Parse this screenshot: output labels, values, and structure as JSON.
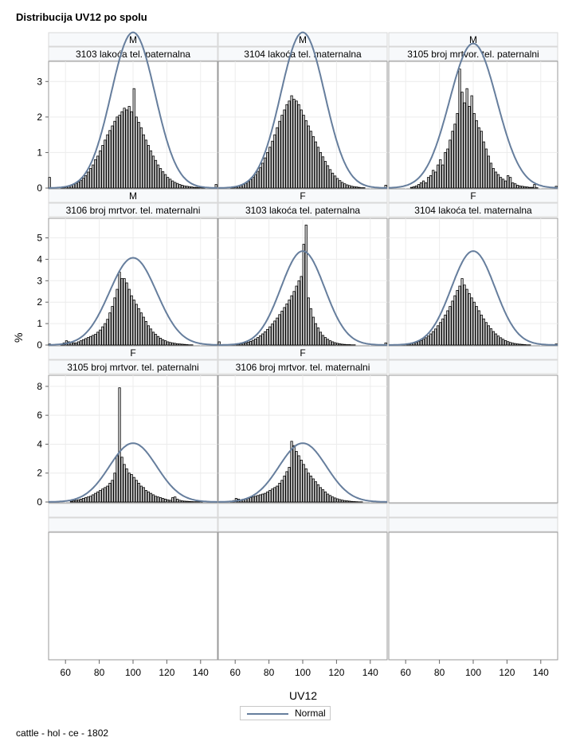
{
  "title": "Distribucija UV12 po spolu",
  "footnote": "cattle - hol - ce - 1802",
  "legend": {
    "label": "Normal",
    "color": "#667e9d"
  },
  "chart_data": {
    "type": "histogram-panel",
    "xlabel": "UV12",
    "ylabel": "%",
    "xlim": [
      50,
      150
    ],
    "xticks": [
      60,
      80,
      100,
      120,
      140
    ],
    "grid": true,
    "legend_position": "bottom-center",
    "bar_color": "#000000",
    "curve_color": "#667e9d",
    "rows": [
      {
        "ylim": [
          0,
          3.5
        ],
        "yticks": [
          0,
          1,
          2,
          3
        ]
      },
      {
        "ylim": [
          0,
          5.8
        ],
        "yticks": [
          0,
          1,
          2,
          3,
          4,
          5
        ]
      },
      {
        "ylim": [
          0,
          8.6
        ],
        "yticks": [
          0,
          2,
          4,
          6,
          8
        ]
      }
    ],
    "panels": [
      {
        "sex": "M",
        "trait": "3103 lakoća tel. paternalna",
        "mean": 100,
        "sd": 13,
        "peak": 2.8,
        "peak_x": 105,
        "hist": [
          0.3,
          0,
          0,
          0,
          0,
          0.02,
          0.03,
          0.04,
          0.06,
          0.08,
          0.1,
          0.13,
          0.17,
          0.22,
          0.28,
          0.35,
          0.45,
          0.55,
          0.65,
          0.8,
          0.9,
          1.05,
          1.2,
          1.35,
          1.5,
          1.62,
          1.75,
          1.88,
          2.0,
          2.05,
          2.15,
          2.25,
          2.2,
          2.3,
          2.15,
          2.8,
          2.0,
          1.85,
          1.7,
          1.5,
          1.35,
          1.2,
          1.05,
          0.9,
          0.78,
          0.65,
          0.55,
          0.46,
          0.38,
          0.3,
          0.25,
          0.2,
          0.16,
          0.13,
          0.1,
          0.08,
          0.06,
          0.05,
          0.04,
          0.03,
          0.02,
          0.02,
          0.01,
          0.01,
          0.01,
          0,
          0,
          0,
          0,
          0.1
        ]
      },
      {
        "sex": "M",
        "trait": "3104 lakoća tel. maternalna",
        "mean": 100,
        "sd": 13,
        "peak": 2.6,
        "peak_x": 101,
        "hist": [
          0,
          0,
          0,
          0,
          0,
          0.01,
          0.02,
          0.03,
          0.05,
          0.07,
          0.1,
          0.13,
          0.18,
          0.24,
          0.3,
          0.38,
          0.47,
          0.58,
          0.7,
          0.85,
          1.0,
          1.15,
          1.32,
          1.5,
          1.7,
          1.88,
          2.05,
          2.2,
          2.35,
          2.45,
          2.6,
          2.5,
          2.45,
          2.35,
          2.2,
          2.05,
          1.9,
          1.75,
          1.6,
          1.45,
          1.3,
          1.15,
          1.0,
          0.88,
          0.75,
          0.63,
          0.52,
          0.42,
          0.34,
          0.27,
          0.21,
          0.16,
          0.12,
          0.09,
          0.07,
          0.05,
          0.04,
          0.03,
          0.02,
          0.01,
          0.01,
          0,
          0,
          0,
          0,
          0,
          0,
          0,
          0,
          0.08
        ]
      },
      {
        "sex": "M",
        "trait": "3105 broj mrtvor. tel. paternalni",
        "mean": 100,
        "sd": 14,
        "peak": 3.4,
        "peak_x": 97,
        "hist": [
          0,
          0,
          0,
          0,
          0,
          0,
          0,
          0,
          0,
          0.02,
          0.04,
          0.06,
          0.1,
          0.15,
          0.2,
          0.15,
          0.3,
          0.35,
          0.5,
          0.45,
          0.65,
          0.8,
          0.65,
          1.0,
          1.1,
          1.35,
          1.6,
          1.8,
          2.1,
          3.35,
          2.7,
          2.4,
          2.8,
          2.3,
          2.6,
          2.1,
          1.9,
          1.7,
          1.6,
          1.3,
          1.1,
          0.9,
          0.7,
          0.55,
          0.45,
          0.38,
          0.3,
          0.25,
          0.2,
          0.35,
          0.3,
          0.15,
          0.12,
          0.08,
          0.06,
          0.05,
          0.04,
          0.03,
          0.02,
          0.02,
          0.1,
          0.01,
          0,
          0,
          0,
          0,
          0,
          0,
          0,
          0.05
        ]
      },
      {
        "sex": "M",
        "trait": "3106 broj mrtvor. tel. maternalni",
        "mean": 100,
        "sd": 14,
        "peak": 3.4,
        "peak_x": 98,
        "hist": [
          0.05,
          0,
          0,
          0,
          0,
          0.05,
          0.1,
          0.2,
          0.15,
          0.12,
          0.1,
          0.1,
          0.15,
          0.2,
          0.25,
          0.3,
          0.35,
          0.4,
          0.45,
          0.5,
          0.6,
          0.7,
          0.85,
          1.0,
          1.2,
          1.5,
          1.8,
          2.2,
          2.6,
          3.4,
          3.1,
          3.1,
          2.9,
          2.6,
          2.3,
          2.1,
          1.9,
          1.7,
          1.5,
          1.3,
          1.1,
          0.9,
          0.75,
          0.6,
          0.5,
          0.4,
          0.32,
          0.25,
          0.2,
          0.15,
          0.12,
          0.1,
          0.08,
          0.06,
          0.05,
          0.04,
          0.03,
          0.02,
          0.01,
          0.01,
          0,
          0,
          0,
          0,
          0,
          0,
          0,
          0,
          0,
          0
        ]
      },
      {
        "sex": "F",
        "trait": "3103 lakoća tel. paternalna",
        "mean": 100,
        "sd": 13,
        "peak": 5.6,
        "peak_x": 106,
        "hist": [
          0.15,
          0,
          0,
          0,
          0,
          0.01,
          0.02,
          0.03,
          0.04,
          0.06,
          0.08,
          0.1,
          0.13,
          0.17,
          0.22,
          0.28,
          0.35,
          0.43,
          0.52,
          0.62,
          0.73,
          0.85,
          0.98,
          1.12,
          1.26,
          1.42,
          1.58,
          1.75,
          1.92,
          2.1,
          2.3,
          2.5,
          2.75,
          3.0,
          3.2,
          4.7,
          5.6,
          2.2,
          1.7,
          1.3,
          1.0,
          0.8,
          0.6,
          0.45,
          0.35,
          0.27,
          0.2,
          0.15,
          0.11,
          0.08,
          0.06,
          0.04,
          0.03,
          0.02,
          0.02,
          0.01,
          0.01,
          0,
          0,
          0,
          0,
          0,
          0,
          0,
          0,
          0,
          0,
          0,
          0,
          0.1
        ]
      },
      {
        "sex": "F",
        "trait": "3104 lakoća tel. maternalna",
        "mean": 100,
        "sd": 13,
        "peak": 3.1,
        "peak_x": 100,
        "hist": [
          0,
          0,
          0,
          0,
          0,
          0.01,
          0.02,
          0.03,
          0.05,
          0.07,
          0.09,
          0.12,
          0.16,
          0.21,
          0.27,
          0.34,
          0.42,
          0.52,
          0.63,
          0.75,
          0.9,
          1.05,
          1.22,
          1.4,
          1.6,
          1.8,
          2.05,
          2.3,
          2.55,
          2.75,
          3.1,
          2.8,
          2.6,
          2.4,
          2.2,
          2.0,
          1.8,
          1.6,
          1.4,
          1.22,
          1.05,
          0.9,
          0.76,
          0.63,
          0.52,
          0.42,
          0.34,
          0.27,
          0.21,
          0.16,
          0.12,
          0.09,
          0.07,
          0.05,
          0.04,
          0.03,
          0.02,
          0.01,
          0.01,
          0,
          0,
          0,
          0,
          0,
          0,
          0,
          0,
          0,
          0,
          0.05
        ]
      },
      {
        "sex": "F",
        "trait": "3105 broj mrtvor. tel. paternalni",
        "mean": 100,
        "sd": 14,
        "peak": 7.9,
        "peak_x": 97,
        "hist": [
          0,
          0,
          0,
          0,
          0,
          0,
          0,
          0,
          0,
          0.05,
          0.1,
          0.12,
          0.15,
          0.2,
          0.25,
          0.3,
          0.35,
          0.4,
          0.5,
          0.6,
          0.7,
          0.8,
          0.9,
          1.0,
          1.1,
          1.3,
          1.5,
          2.0,
          3.2,
          7.9,
          3.1,
          2.6,
          2.3,
          2.0,
          1.9,
          1.7,
          1.5,
          1.3,
          1.1,
          1.0,
          0.8,
          0.7,
          0.6,
          0.5,
          0.4,
          0.35,
          0.3,
          0.25,
          0.2,
          0.15,
          0.12,
          0.3,
          0.35,
          0.2,
          0.12,
          0.08,
          0.06,
          0.05,
          0.04,
          0.03,
          0.02,
          0.02,
          0.01,
          0.01,
          0,
          0,
          0,
          0,
          0,
          0
        ]
      },
      {
        "sex": "F",
        "trait": "3106 broj mrtvor. tel. maternalni",
        "mean": 100,
        "sd": 14,
        "peak": 4.2,
        "peak_x": 99,
        "hist": [
          0,
          0,
          0,
          0,
          0,
          0.05,
          0.1,
          0.25,
          0.2,
          0.15,
          0.2,
          0.2,
          0.25,
          0.3,
          0.35,
          0.4,
          0.45,
          0.5,
          0.55,
          0.6,
          0.7,
          0.8,
          0.9,
          1.0,
          1.1,
          1.3,
          1.5,
          1.8,
          2.1,
          2.4,
          4.2,
          3.9,
          3.5,
          3.2,
          2.9,
          2.6,
          2.3,
          2.0,
          1.8,
          1.6,
          1.4,
          1.2,
          1.0,
          0.85,
          0.7,
          0.55,
          0.45,
          0.35,
          0.28,
          0.22,
          0.17,
          0.13,
          0.1,
          0.08,
          0.06,
          0.04,
          0.03,
          0.02,
          0.01,
          0.01,
          0,
          0,
          0,
          0,
          0,
          0,
          0,
          0,
          0,
          0
        ]
      }
    ]
  }
}
